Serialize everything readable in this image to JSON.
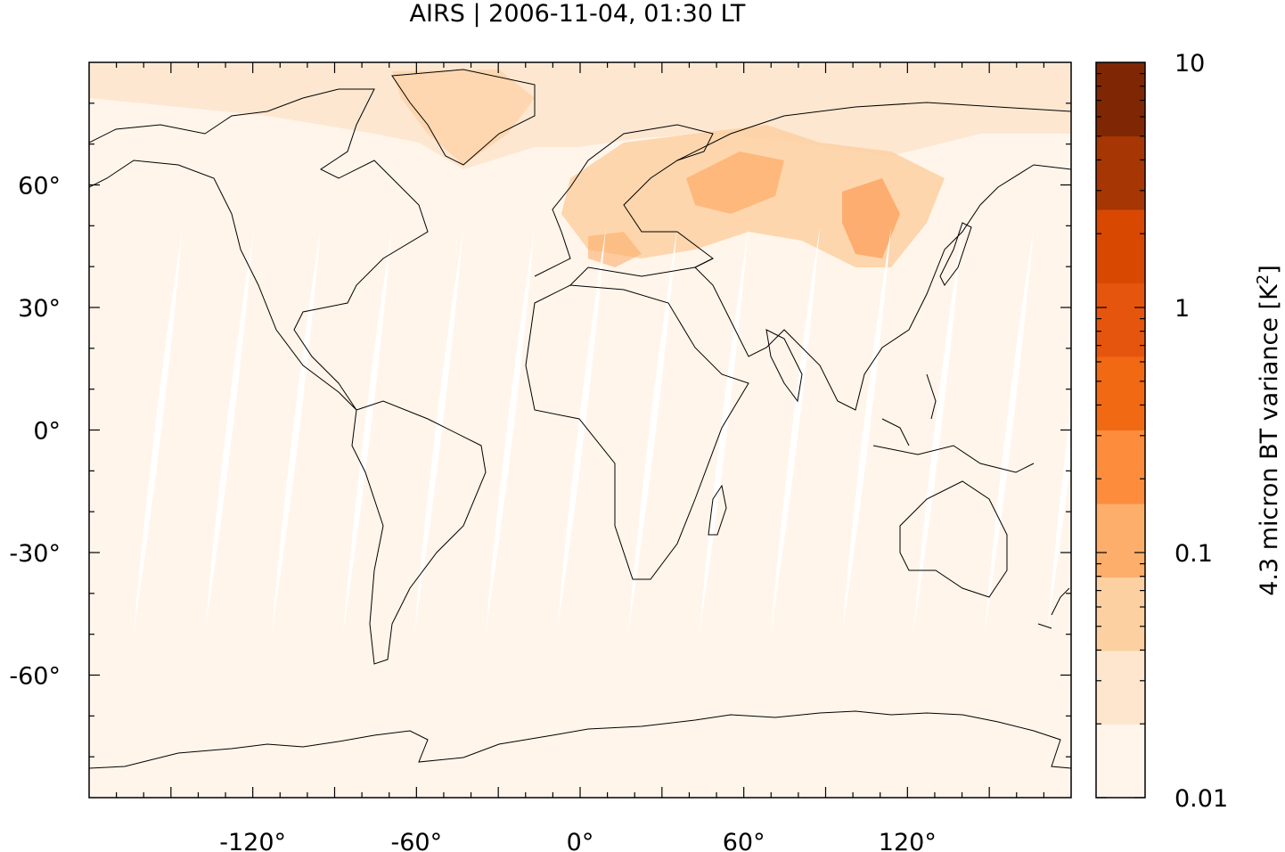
{
  "title": "AIRS | 2006-11-04, 01:30 LT",
  "map": {
    "projection": "equirectangular",
    "lon_range": [
      -180,
      180
    ],
    "lat_range": [
      -90,
      90
    ],
    "x_ticks": [
      {
        "value": -120,
        "label": "-120°"
      },
      {
        "value": -60,
        "label": "-60°"
      },
      {
        "value": 0,
        "label": "0°"
      },
      {
        "value": 60,
        "label": "60°"
      },
      {
        "value": 120,
        "label": "120°"
      }
    ],
    "y_ticks": [
      {
        "value": 60,
        "label": "60°"
      },
      {
        "value": 30,
        "label": "30°"
      },
      {
        "value": 0,
        "label": "0°"
      },
      {
        "value": -30,
        "label": "-30°"
      },
      {
        "value": -60,
        "label": "-60°"
      }
    ],
    "background_color": "#fff5eb",
    "swath_gap_color": "#ffffff",
    "coastline_color": "#000000"
  },
  "colorbar": {
    "label": "4.3 micron BT variance [K",
    "label_sup": "2",
    "label_end": "]",
    "scale": "log",
    "range": [
      0.01,
      10
    ],
    "tick_labels": [
      {
        "value": 10,
        "label": "10"
      },
      {
        "value": 1,
        "label": "1"
      },
      {
        "value": 0.1,
        "label": "0.1"
      },
      {
        "value": 0.01,
        "label": "0.01"
      }
    ],
    "colors": [
      "#fff5eb",
      "#fee6ce",
      "#fdd0a2",
      "#fdae6b",
      "#fd8d3c",
      "#f16913",
      "#e6550d",
      "#d94801",
      "#a63603",
      "#7f2704"
    ]
  }
}
